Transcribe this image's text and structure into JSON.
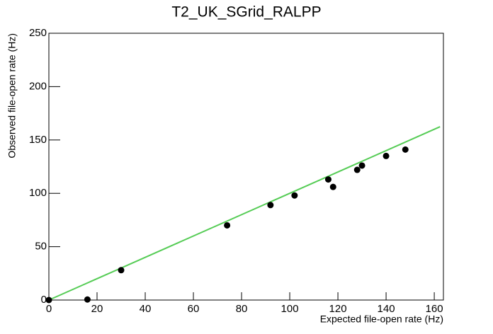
{
  "chart_data": {
    "type": "scatter",
    "title": "T2_UK_SGrid_RALPP",
    "x_label": "Expected file-open rate (Hz)",
    "y_label": "Observed file-open rate (Hz)",
    "series": [
      {
        "color": "#000000",
        "x": [
          0,
          16,
          30,
          74,
          92,
          102,
          116,
          118,
          128,
          130,
          140,
          148
        ],
        "values": [
          0,
          0.5,
          28,
          70,
          89,
          98,
          113,
          106,
          122,
          126,
          135,
          141
        ]
      }
    ],
    "fit_line": {
      "color": "#55cc55",
      "x": [
        0,
        162.4
      ],
      "values": [
        0,
        162.4
      ]
    },
    "xlim": [
      0,
      163.8
    ],
    "xticks": [
      0,
      20,
      40,
      60,
      80,
      100,
      120,
      140,
      160
    ],
    "ylim": [
      0,
      250
    ],
    "yticks": [
      0,
      50,
      100,
      150,
      200,
      250
    ]
  }
}
